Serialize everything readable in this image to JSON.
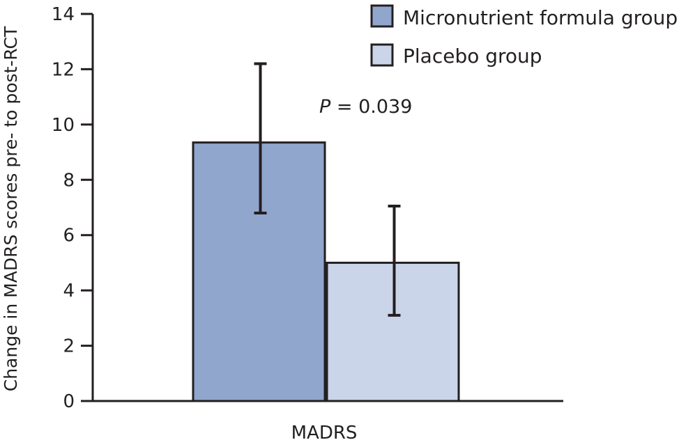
{
  "chart_data": {
    "type": "bar",
    "categories": [
      "MADRS"
    ],
    "series": [
      {
        "name": "Micronutrient formula group",
        "values": [
          9.35
        ],
        "error_low": [
          6.8
        ],
        "error_high": [
          12.2
        ]
      },
      {
        "name": "Placebo group",
        "values": [
          5.0
        ],
        "error_low": [
          3.1
        ],
        "error_high": [
          7.05
        ]
      }
    ],
    "title": "",
    "xlabel": "",
    "ylabel": "Change in MADRS scores pre- to post-RCT",
    "ylim": [
      0,
      14
    ],
    "yticks": [
      0,
      2,
      4,
      6,
      8,
      10,
      12,
      14
    ],
    "annotation": {
      "italic": "P",
      "rest": " = 0.039"
    },
    "legend_position": "top-right",
    "grid": false
  },
  "colors": {
    "micronutrient": "#91a6cd",
    "placebo": "#cbd5e9",
    "axis": "#231f20"
  }
}
